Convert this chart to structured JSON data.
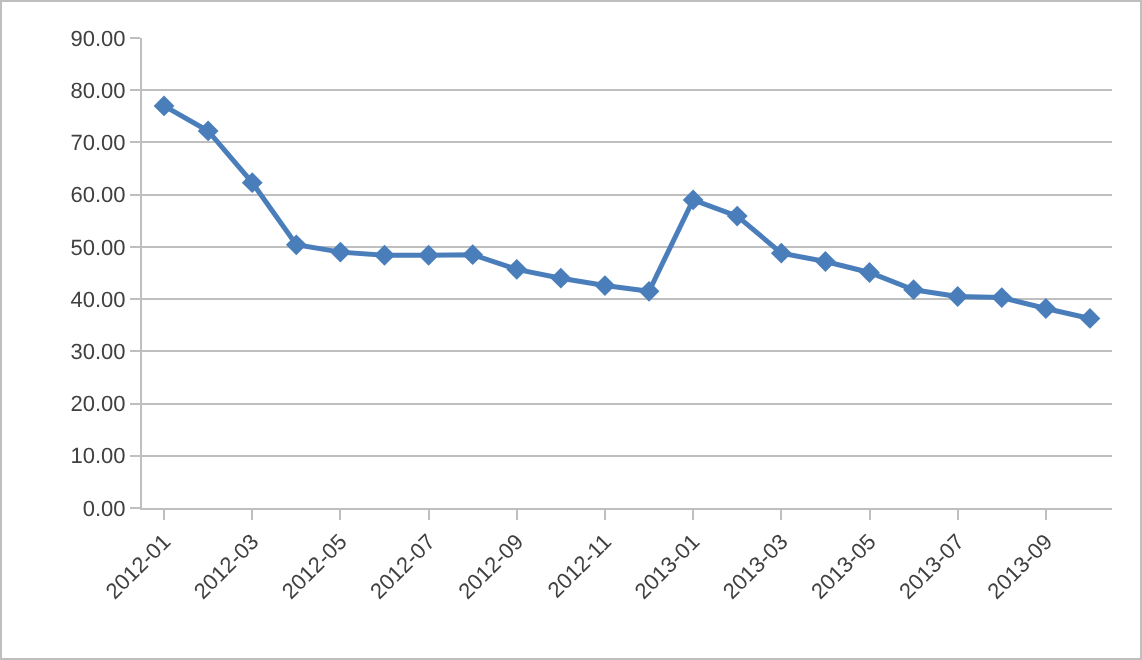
{
  "chart_data": {
    "type": "line",
    "categories": [
      "2012-01",
      null,
      "2012-03",
      null,
      "2012-05",
      null,
      "2012-07",
      null,
      "2012-09",
      null,
      "2012-11",
      null,
      "2013-01",
      null,
      "2013-03",
      null,
      "2013-05",
      null,
      "2013-07",
      null,
      "2013-09",
      null
    ],
    "series": [
      {
        "color": "#4a7ebb",
        "values": [
          77.0,
          72.2,
          62.3,
          50.4,
          49.0,
          48.4,
          48.4,
          48.5,
          45.7,
          44.0,
          42.6,
          41.5,
          59.0,
          55.9,
          48.8,
          47.2,
          45.1,
          41.8,
          40.5,
          40.3,
          38.2,
          36.3
        ]
      }
    ],
    "ylim": [
      0,
      90
    ],
    "yticks": [
      {
        "value": 0,
        "label": "0.00"
      },
      {
        "value": 10,
        "label": "10.00"
      },
      {
        "value": 20,
        "label": "20.00"
      },
      {
        "value": 30,
        "label": "30.00"
      },
      {
        "value": 40,
        "label": "40.00"
      },
      {
        "value": 50,
        "label": "50.00"
      },
      {
        "value": 60,
        "label": "60.00"
      },
      {
        "value": 70,
        "label": "70.00"
      },
      {
        "value": 80,
        "label": "80.00"
      },
      {
        "value": 90,
        "label": "90.00"
      }
    ],
    "grid": "y",
    "marker": "diamond",
    "line_style": "solid"
  }
}
